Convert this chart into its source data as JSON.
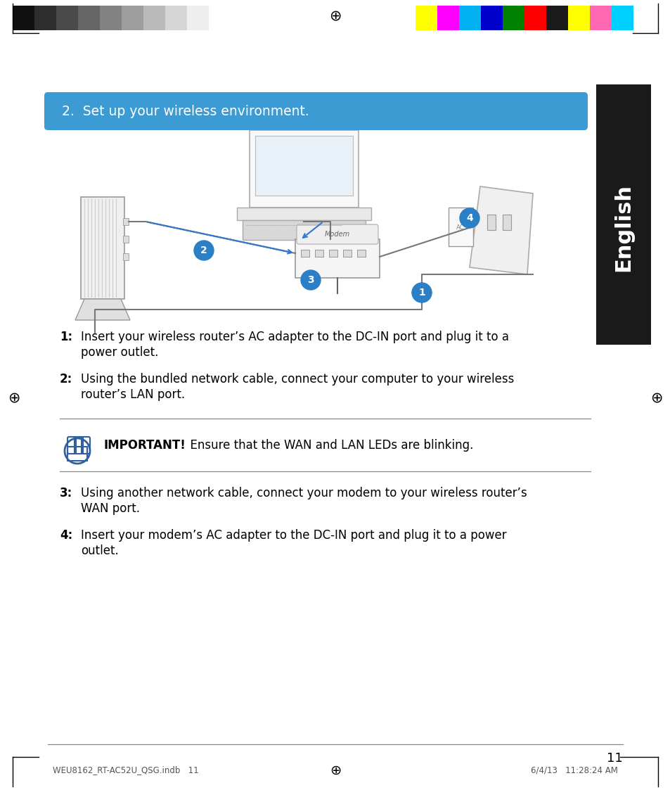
{
  "page_bg": "#ffffff",
  "top_bar_colors_left": [
    "#111111",
    "#2e2e2e",
    "#4a4a4a",
    "#666666",
    "#828282",
    "#9e9e9e",
    "#bababa",
    "#d6d6d6",
    "#eeeeee",
    "#ffffff"
  ],
  "top_bar_colors_right": [
    "#ffff00",
    "#ff00ff",
    "#00b0f0",
    "#0000cc",
    "#008000",
    "#ff0000",
    "#1a1a1a",
    "#ffff00",
    "#ff69b4",
    "#00d0ff"
  ],
  "header_title": "2.  Set up your wireless environment.",
  "header_bg": "#3d9bd4",
  "header_text_color": "#ffffff",
  "sidebar_bg": "#1a1a1a",
  "sidebar_text": "English",
  "sidebar_text_color": "#ffffff",
  "important_bold": "IMPORTANT!",
  "important_text": "  Ensure that the WAN and LAN LEDs are blinking.",
  "page_number": "11",
  "bottom_text_left": "WEU8162_RT-AC52U_QSG.indb   11",
  "bottom_text_right": "6/4/13   11:28:24 AM",
  "text_items": [
    {
      "num": "1:",
      "lines": [
        "Insert your wireless router’s AC adapter to the DC-IN port and plug it to a",
        "power outlet."
      ]
    },
    {
      "num": "2:",
      "lines": [
        "Using the bundled network cable, connect your computer to your wireless",
        "router’s LAN port."
      ]
    },
    {
      "num": "3:",
      "lines": [
        "Using another network cable, connect your modem to your wireless router’s",
        "WAN port."
      ]
    },
    {
      "num": "4:",
      "lines": [
        "Insert your modem’s AC adapter to the DC-IN port and plug it to a power",
        "outlet."
      ]
    }
  ],
  "circle_color": "#2b7fc4",
  "hand_color": "#3060a0"
}
